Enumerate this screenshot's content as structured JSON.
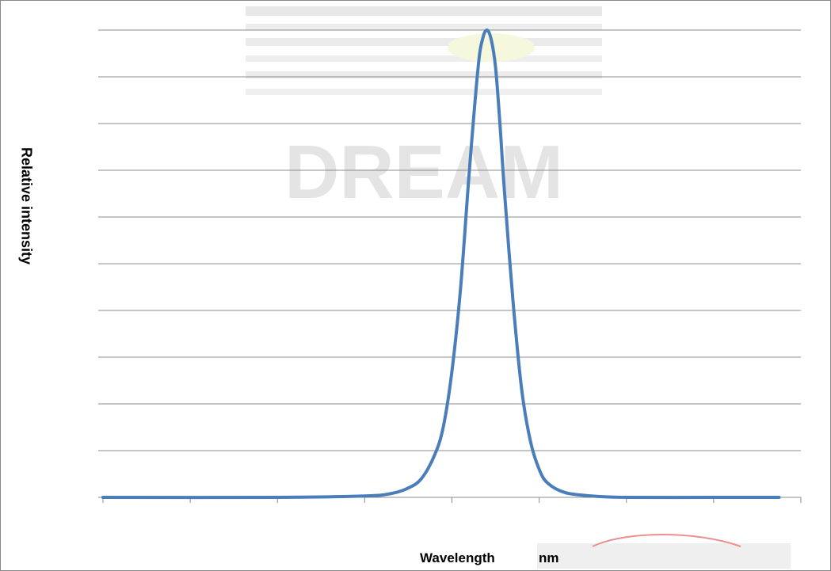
{
  "chart_data": {
    "type": "line",
    "title": "",
    "xlabel": "Wavelength",
    "xunit": "nm",
    "ylabel": "Relative intensity",
    "grid": "horizontal",
    "legend": "none",
    "y_gridlines": 10,
    "x_ticks": 8,
    "xlim": [
      0,
      8
    ],
    "ylim": [
      0,
      1
    ],
    "series": [
      {
        "color": "#4a7ebb",
        "x": [
          0.0,
          2.0,
          3.0,
          3.3,
          3.5,
          3.65,
          3.8,
          3.9,
          4.0,
          4.1,
          4.2,
          4.3,
          4.35,
          4.4,
          4.45,
          4.5,
          4.55,
          4.6,
          4.7,
          4.8,
          4.9,
          5.0,
          5.1,
          5.3,
          5.6,
          6.0,
          7.0,
          7.75
        ],
        "y": [
          0.0,
          0.0,
          0.003,
          0.008,
          0.02,
          0.04,
          0.09,
          0.15,
          0.27,
          0.45,
          0.7,
          0.92,
          0.98,
          1.0,
          0.98,
          0.92,
          0.8,
          0.66,
          0.42,
          0.23,
          0.12,
          0.06,
          0.03,
          0.01,
          0.003,
          0.0,
          0.0,
          0.0
        ]
      }
    ]
  },
  "watermark": {
    "text": "DREAM"
  }
}
